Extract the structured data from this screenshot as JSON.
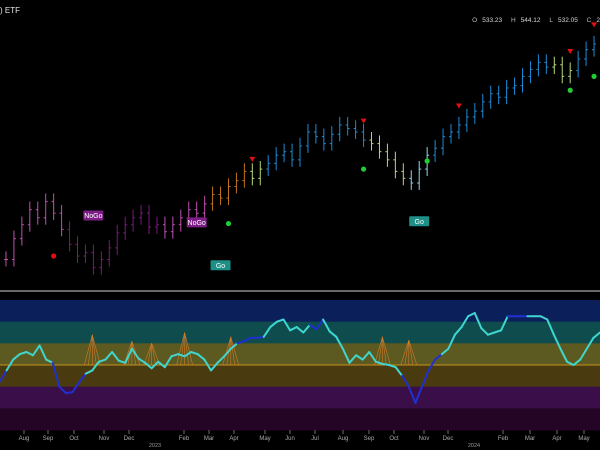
{
  "header": {
    "title": ") ETF",
    "ohlc": [
      {
        "key": "O",
        "value": "533.23"
      },
      {
        "key": "H",
        "value": "544.12"
      },
      {
        "key": "L",
        "value": "532.05"
      },
      {
        "key": "C",
        "value": "2"
      }
    ]
  },
  "colors": {
    "background": "#000000",
    "strong_uptrend": "#1f8ad6",
    "weak_uptrend": "#8fd6f0",
    "flat": "#b8d87a",
    "weak_downtrend": "#c0741e",
    "downtrend": "#c050b0",
    "strong_downtrend": "#7a1a7a",
    "go_dot": "#22cc33",
    "nogo_dot": "#e01010",
    "oscillator_line": "#3fd6cf",
    "oscillator_low_line": "#2030d0",
    "zero_line": "#c8931e"
  },
  "chart_data": [
    {
      "type": "line",
      "subtype": "ohlc-bars",
      "title": "",
      "x_ticks": [
        "Aug",
        "Sep",
        "Oct",
        "Nov",
        "Dec",
        "Feb",
        "Mar",
        "Apr",
        "May",
        "Jun",
        "Jul",
        "Aug",
        "Sep",
        "Oct",
        "Nov",
        "Dec",
        "Feb",
        "Mar",
        "Apr",
        "May"
      ],
      "x_tick_labels_shown": [
        "Aug",
        "Sep",
        "Oct",
        "Nov",
        "Dec",
        "2023",
        "Feb",
        "Mar",
        "Apr",
        "May",
        "Jun",
        "Jul",
        "Aug",
        "Sep",
        "Oct",
        "Nov",
        "Dec",
        "2024",
        "Feb",
        "Mar",
        "Apr",
        "May"
      ],
      "year_labels": [
        "2023",
        "2024"
      ],
      "annotations": [
        {
          "text": "NoGo",
          "kind": "nogo-badge"
        },
        {
          "text": "NoGo",
          "kind": "nogo-badge"
        },
        {
          "text": "Go",
          "kind": "go-badge"
        },
        {
          "text": "Go",
          "kind": "go-badge"
        }
      ],
      "series": [
        {
          "values": [
            362,
            380,
            392,
            405,
            398,
            412,
            402,
            388,
            375,
            365,
            368,
            355,
            362,
            372,
            385,
            392,
            398,
            402,
            390,
            392,
            386,
            392,
            398,
            405,
            402,
            410,
            418,
            415,
            425,
            430,
            438,
            432,
            440,
            445,
            452,
            455,
            448,
            460,
            472,
            468,
            462,
            470,
            478,
            475,
            472,
            465,
            462,
            455,
            448,
            438,
            432,
            428,
            440,
            452,
            458,
            468,
            472,
            478,
            485,
            490,
            498,
            505,
            502,
            510,
            512,
            520,
            526,
            532,
            528,
            530,
            520,
            525,
            535,
            543,
            548
          ]
        }
      ]
    },
    {
      "type": "line",
      "subtype": "oscillator",
      "title": "",
      "ylim": [
        -6,
        6
      ],
      "bands": [
        "strong positive",
        "positive",
        "weak positive",
        "weak negative",
        "negative",
        "strong negative"
      ],
      "series": [
        {
          "values": [
            -1.5,
            -0.5,
            0.5,
            1.0,
            1.2,
            0.9,
            1.8,
            0.5,
            0.2,
            -2.0,
            -2.6,
            -2.5,
            -1.6,
            -0.8,
            -0.5,
            0.3,
            0.5,
            1.2,
            0.4,
            0.2,
            1.5,
            0.6,
            0.2,
            -0.3,
            0.3,
            -0.2,
            0.8,
            1.0,
            0.8,
            1.2,
            1.0,
            0.5,
            -0.5,
            0.2,
            0.8,
            1.5,
            2.0,
            2.2,
            2.5,
            2.5,
            2.6,
            3.5,
            4.0,
            4.2,
            3.2,
            3.5,
            3.0,
            3.7,
            3.3,
            4.2,
            3.1,
            2.6,
            1.5,
            0.2,
            0.9,
            0.5,
            1.2,
            0.3,
            0.1,
            0.0,
            -0.2,
            -1.0,
            -2.0,
            -3.5,
            -2.0,
            -0.5,
            0.5,
            1.0,
            1.5,
            2.8,
            3.5,
            4.5,
            4.8,
            3.4,
            2.8,
            3.0,
            3.2,
            4.5,
            4.5,
            4.5,
            4.5,
            4.5,
            4.5,
            4.2,
            2.8,
            1.5,
            0.3,
            0.0,
            0.5,
            1.5,
            2.5,
            3.0
          ]
        }
      ]
    }
  ]
}
